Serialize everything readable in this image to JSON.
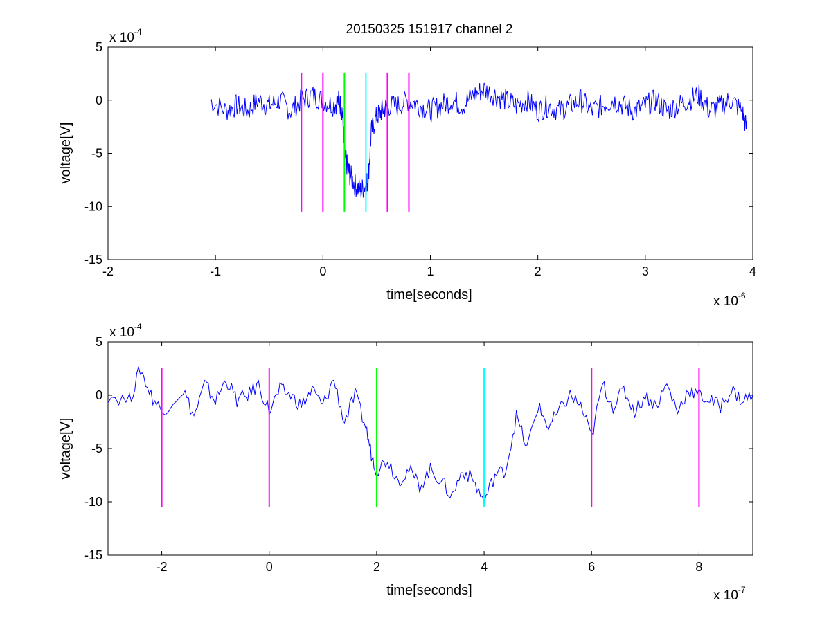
{
  "figure": {
    "title": "20150325 151917 channel 2"
  },
  "chart_data": [
    {
      "type": "line",
      "xlabel": "time[seconds]",
      "ylabel": "voltage[V]",
      "x_multiplier": {
        "base": "x 10",
        "exp": "-6"
      },
      "y_multiplier": {
        "base": "x 10",
        "exp": "-4"
      },
      "xlim": [
        -2,
        4
      ],
      "ylim": [
        -15,
        5
      ],
      "xticks": [
        "-2",
        "-1",
        "0",
        "1",
        "2",
        "3",
        "4"
      ],
      "yticks": [
        "5",
        "0",
        "-5",
        "-10",
        "-15"
      ],
      "grid": false,
      "series": [
        {
          "color": "#0000ff",
          "x": [
            -1.05,
            -0.9,
            -0.8,
            -0.7,
            -0.6,
            -0.5,
            -0.4,
            -0.3,
            -0.2,
            -0.1,
            0.0,
            0.1,
            0.15,
            0.18,
            0.2,
            0.22,
            0.25,
            0.3,
            0.35,
            0.4,
            0.42,
            0.45,
            0.5,
            0.55,
            0.6,
            0.7,
            0.8,
            0.9,
            1.0,
            1.1,
            1.2,
            1.3,
            1.4,
            1.5,
            1.6,
            1.7,
            1.8,
            1.9,
            2.0,
            2.1,
            2.2,
            2.3,
            2.4,
            2.5,
            2.6,
            2.7,
            2.8,
            2.9,
            3.0,
            3.1,
            3.2,
            3.3,
            3.4,
            3.5,
            3.6,
            3.7,
            3.8,
            3.9,
            3.95
          ],
          "y": [
            0,
            -1,
            -0.5,
            -1,
            0,
            -0.5,
            0,
            -1,
            0,
            0.5,
            0,
            -0.5,
            0,
            -1,
            -5,
            -6,
            -7,
            -8,
            -8.5,
            -8,
            -7.5,
            -3,
            -1.5,
            -1,
            -0.5,
            -0.5,
            0,
            -0.5,
            -1,
            -0.5,
            0,
            -0.5,
            0.5,
            1,
            0.5,
            0,
            -0.5,
            0,
            -1,
            -0.5,
            -1,
            -0.5,
            0,
            -1,
            -0.5,
            0,
            -0.5,
            -1,
            -0.5,
            0,
            -1,
            -0.5,
            0,
            0.5,
            -1,
            -0.5,
            0,
            -1,
            -3
          ]
        }
      ],
      "markers": [
        {
          "x": -0.2,
          "color": "#ff00ff"
        },
        {
          "x": 0.0,
          "color": "#ff00ff"
        },
        {
          "x": 0.2,
          "color": "#00ff00"
        },
        {
          "x": 0.4,
          "color": "#00ffff"
        },
        {
          "x": 0.6,
          "color": "#ff00ff"
        },
        {
          "x": 0.8,
          "color": "#ff00ff"
        }
      ],
      "marker_range": [
        -10.5,
        2.6
      ]
    },
    {
      "type": "line",
      "xlabel": "time[seconds]",
      "ylabel": "voltage[V]",
      "x_multiplier": {
        "base": "x 10",
        "exp": "-7"
      },
      "y_multiplier": {
        "base": "x 10",
        "exp": "-4"
      },
      "xlim": [
        -3,
        9
      ],
      "ylim": [
        -15,
        5
      ],
      "xticks": [
        "-2",
        "0",
        "2",
        "4",
        "6",
        "8"
      ],
      "xtick_values": [
        -2,
        0,
        2,
        4,
        6,
        8
      ],
      "yticks": [
        "5",
        "0",
        "-5",
        "-10",
        "-15"
      ],
      "grid": false,
      "series": [
        {
          "color": "#0000ff",
          "x": [
            -3,
            -2.6,
            -2.4,
            -2.2,
            -2.0,
            -1.6,
            -1.4,
            -1.2,
            -1.0,
            -0.8,
            -0.6,
            -0.4,
            -0.2,
            0,
            0.2,
            0.4,
            0.6,
            0.8,
            1.0,
            1.2,
            1.4,
            1.6,
            1.8,
            1.9,
            2.0,
            2.2,
            2.4,
            2.6,
            2.8,
            3.0,
            3.2,
            3.4,
            3.6,
            3.8,
            4.0,
            4.2,
            4.4,
            4.6,
            4.8,
            5.0,
            5.2,
            5.4,
            5.6,
            5.8,
            6.0,
            6.2,
            6.4,
            6.6,
            6.8,
            7.0,
            7.2,
            7.4,
            7.6,
            7.8,
            8.0,
            8.2,
            8.4,
            8.6,
            8.8,
            9.0
          ],
          "y": [
            0,
            -0.5,
            2.5,
            0,
            -1.5,
            0.5,
            -2,
            1,
            -0.5,
            1.5,
            -0.5,
            0,
            1,
            -1.5,
            0.5,
            0,
            -1,
            0.5,
            -1,
            1.5,
            -2.5,
            0,
            -3,
            -5.5,
            -7,
            -6,
            -8,
            -7,
            -8.5,
            -7,
            -8,
            -9.5,
            -7,
            -8,
            -10,
            -7.5,
            -7,
            -2,
            -5,
            -1,
            -3,
            -1.5,
            0,
            -1,
            -4,
            1,
            -1,
            0.5,
            -1.5,
            0,
            -1,
            1,
            -1.5,
            0.5,
            0,
            -0.5,
            -1,
            0.5,
            -0.5,
            0
          ]
        }
      ],
      "markers": [
        {
          "x": -2,
          "color": "#ff00ff"
        },
        {
          "x": 0,
          "color": "#ff00ff"
        },
        {
          "x": 2,
          "color": "#00ff00"
        },
        {
          "x": 4,
          "color": "#00ffff"
        },
        {
          "x": 6,
          "color": "#ff00ff"
        },
        {
          "x": 8,
          "color": "#ff00ff"
        }
      ],
      "marker_range": [
        -10.5,
        2.6
      ]
    }
  ]
}
